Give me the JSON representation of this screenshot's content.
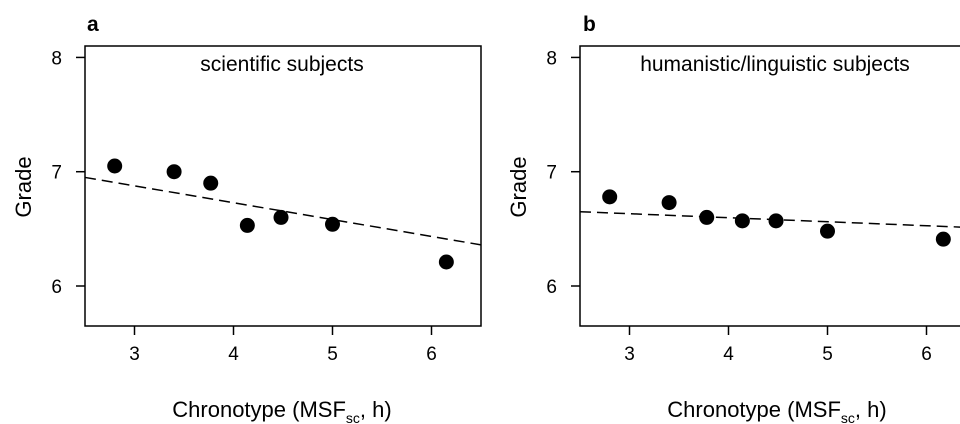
{
  "chart_data": [
    {
      "panel": "a",
      "type": "scatter",
      "title": "scientific subjects",
      "xlabel": "Chronotype (MSFsc, h)",
      "ylabel": "Grade",
      "xlim": [
        2.5,
        6.5
      ],
      "ylim": [
        5.65,
        8.1
      ],
      "xticks": [
        3,
        4,
        5,
        6
      ],
      "yticks": [
        6,
        7,
        8
      ],
      "points": [
        {
          "x": 2.8,
          "y": 7.05
        },
        {
          "x": 3.4,
          "y": 7.0
        },
        {
          "x": 3.77,
          "y": 6.9
        },
        {
          "x": 4.14,
          "y": 6.53
        },
        {
          "x": 4.48,
          "y": 6.6
        },
        {
          "x": 5.0,
          "y": 6.54
        },
        {
          "x": 6.15,
          "y": 6.21
        }
      ],
      "trendline": {
        "style": "dashed",
        "x": [
          2.5,
          6.5
        ],
        "y": [
          6.95,
          6.36
        ]
      }
    },
    {
      "panel": "b",
      "type": "scatter",
      "title": "humanistic/linguistic subjects",
      "xlabel": "Chronotype (MSFsc, h)",
      "ylabel": "Grade",
      "xlim": [
        2.5,
        6.5
      ],
      "ylim": [
        5.65,
        8.1
      ],
      "xticks": [
        3,
        4,
        5,
        6
      ],
      "yticks": [
        6,
        7,
        8
      ],
      "points": [
        {
          "x": 2.8,
          "y": 6.78
        },
        {
          "x": 3.4,
          "y": 6.73
        },
        {
          "x": 3.78,
          "y": 6.6
        },
        {
          "x": 4.14,
          "y": 6.57
        },
        {
          "x": 4.48,
          "y": 6.57
        },
        {
          "x": 5.0,
          "y": 6.48
        },
        {
          "x": 6.17,
          "y": 6.41
        }
      ],
      "trendline": {
        "style": "dashed",
        "x": [
          2.5,
          6.5
        ],
        "y": [
          6.65,
          6.51
        ]
      }
    }
  ]
}
